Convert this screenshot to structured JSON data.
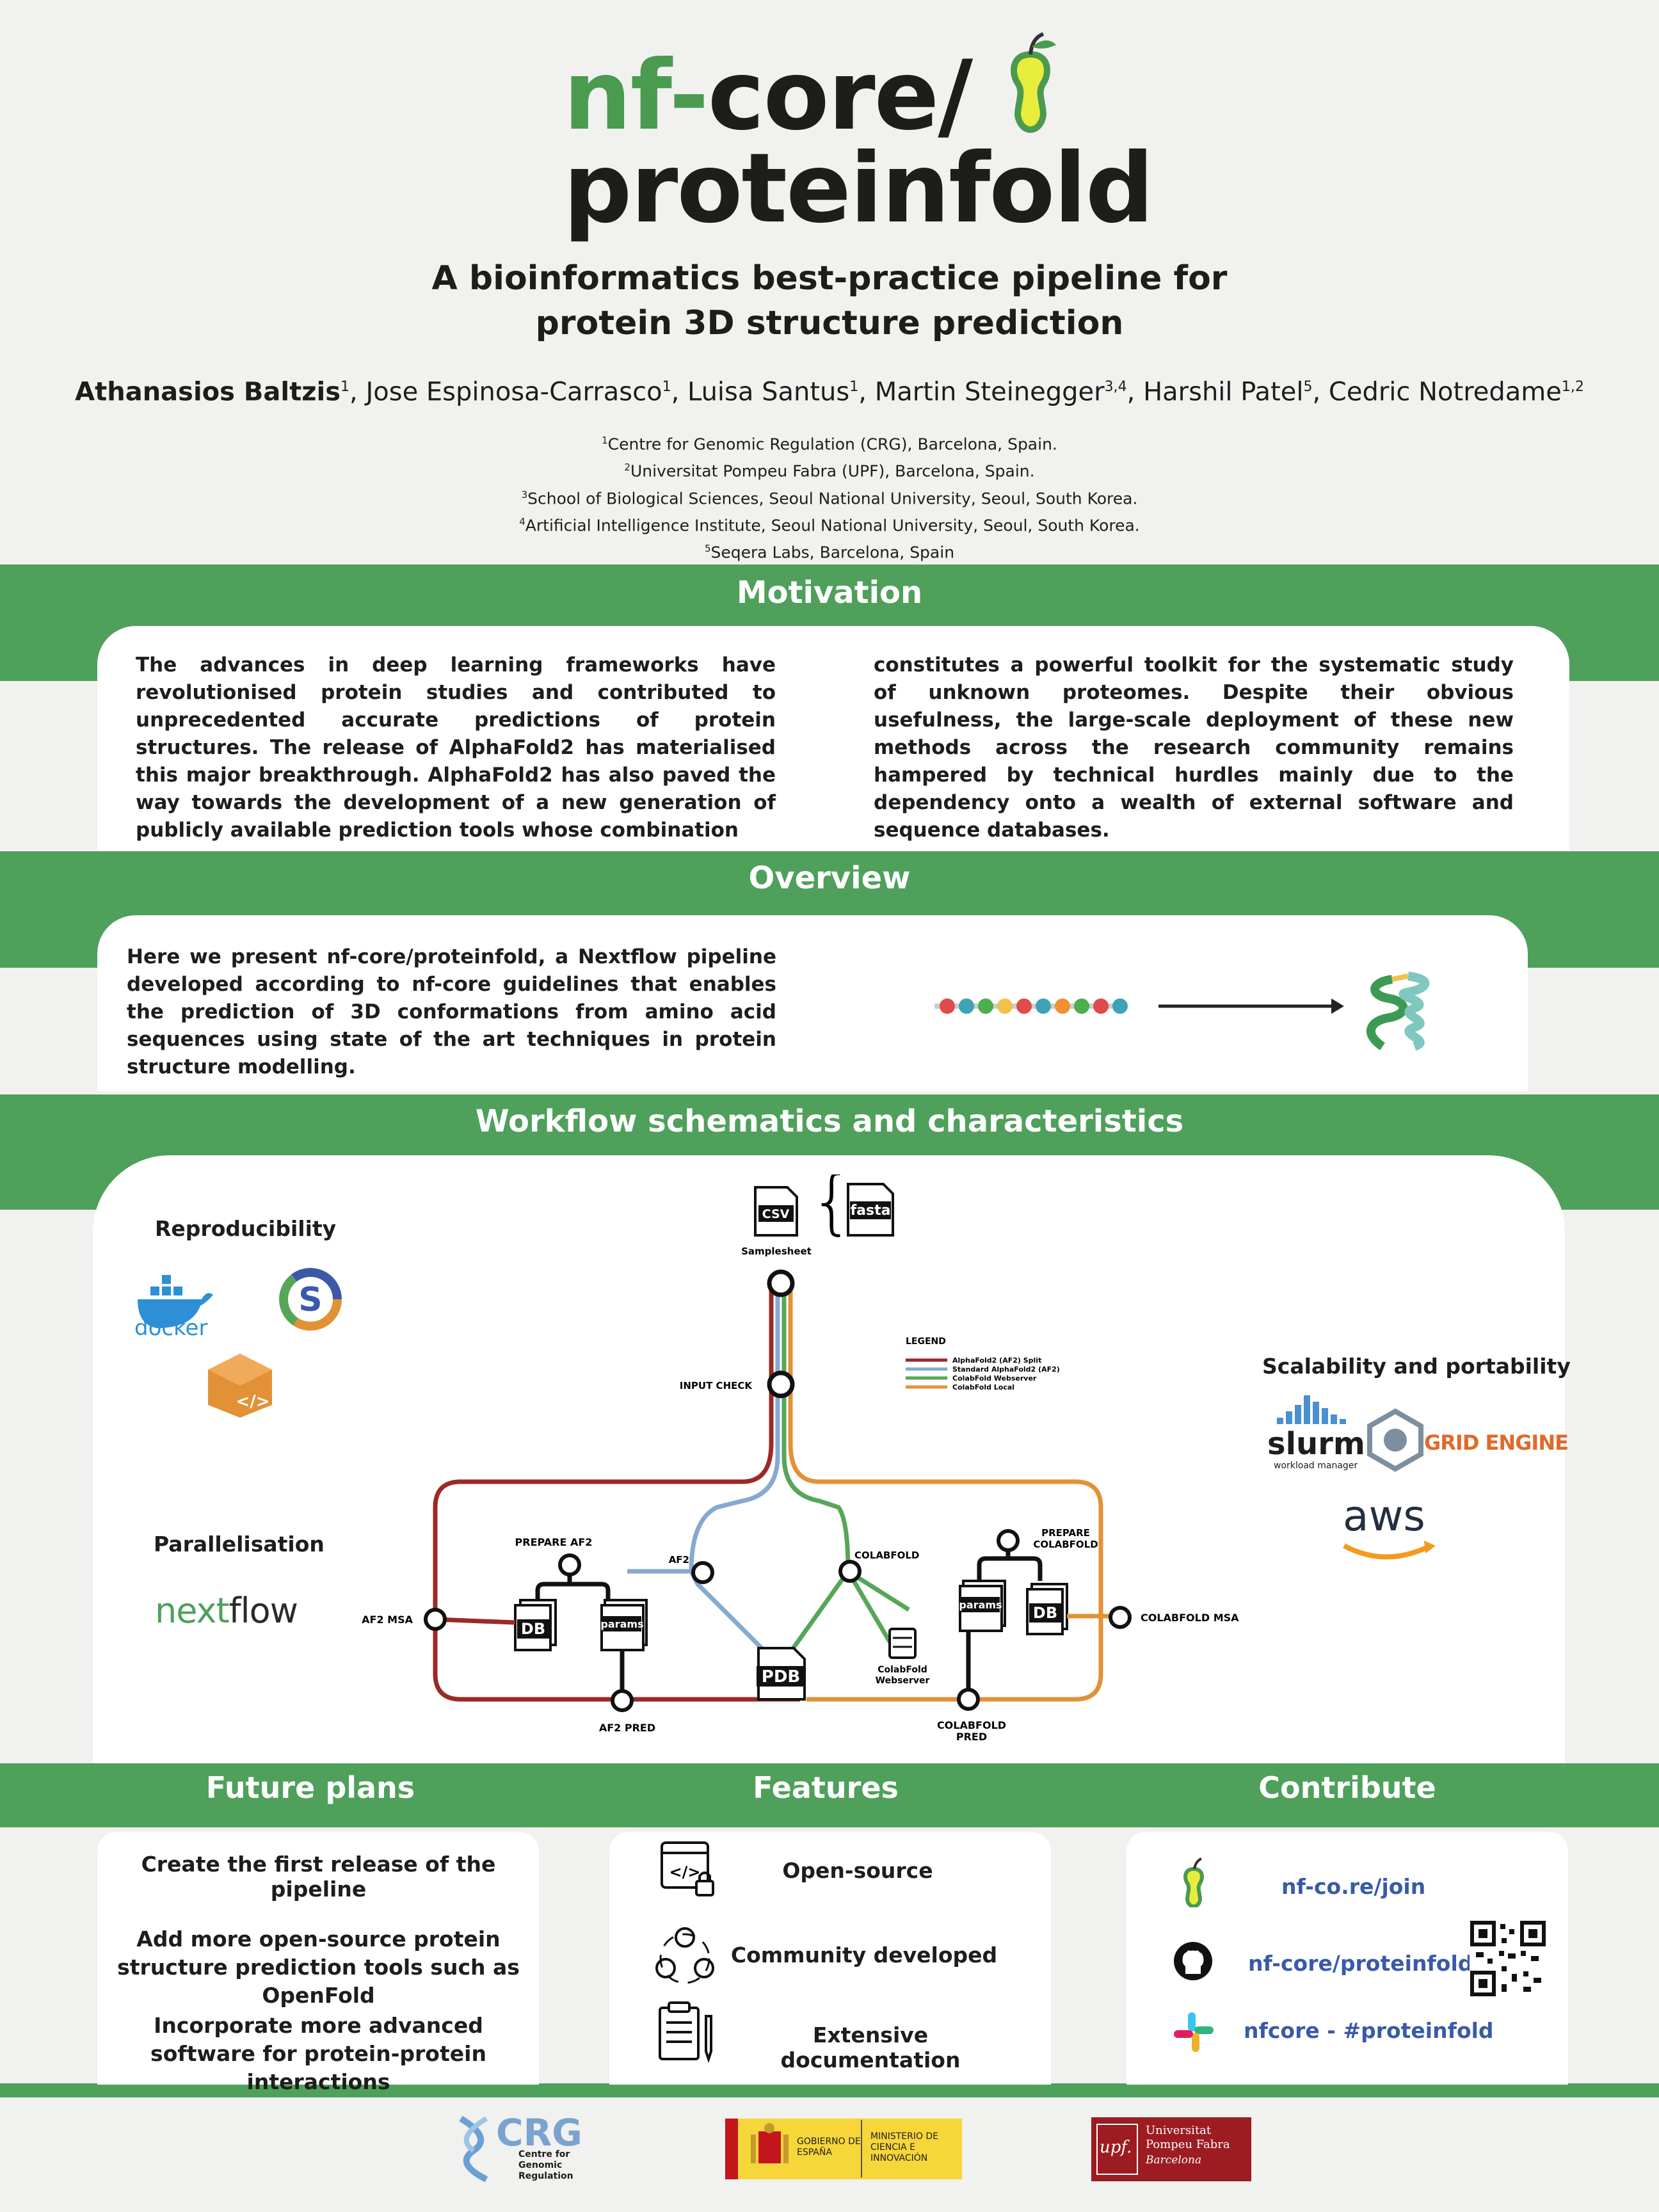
{
  "header": {
    "title_nf": "nf-",
    "title_core": "core/",
    "title_line2": "proteinfold",
    "subtitle_line1": "A bioinformatics best-practice pipeline for",
    "subtitle_line2": "protein 3D structure prediction",
    "authors": [
      {
        "name": "Athanasios Baltzis",
        "sup": "1",
        "bold": true
      },
      {
        "name": "Jose Espinosa-Carrasco",
        "sup": "1"
      },
      {
        "name": "Luisa Santus",
        "sup": "1"
      },
      {
        "name": "Martin Steinegger",
        "sup": "3,4"
      },
      {
        "name": "Harshil Patel",
        "sup": "5"
      },
      {
        "name": "Cedric Notredame",
        "sup": "1,2"
      }
    ],
    "affiliations": [
      {
        "sup": "1",
        "text": "Centre for Genomic Regulation (CRG), Barcelona, Spain."
      },
      {
        "sup": "2",
        "text": "Universitat Pompeu Fabra (UPF), Barcelona, Spain."
      },
      {
        "sup": "3",
        "text": "School of Biological Sciences, Seoul National University, Seoul, South Korea."
      },
      {
        "sup": "4",
        "text": "Artificial Intelligence Institute, Seoul National University, Seoul, South Korea."
      },
      {
        "sup": "5",
        "text": "Seqera Labs, Barcelona, Spain"
      }
    ]
  },
  "motivation": {
    "heading": "Motivation",
    "col1": "The advances in deep learning frameworks have revolutionised protein studies and contributed to unprecedented accurate predictions of protein structures. The release of AlphaFold2 has materialised this major breakthrough. AlphaFold2 has also paved the way towards the development of a new generation of publicly available prediction tools whose combination",
    "col2": "constitutes a powerful toolkit for the systematic study of unknown proteomes. Despite their obvious usefulness, the large-scale deployment of these new methods across the research community remains hampered by technical hurdles mainly due to the dependency onto a wealth of external software and sequence databases."
  },
  "overview": {
    "heading": "Overview",
    "text": "Here we present nf-core/proteinfold, a Nextflow pipeline developed according to nf-core guidelines that enables the prediction of 3D conformations from amino acid sequences using state of the art techniques in protein structure modelling."
  },
  "workflow": {
    "heading": "Workflow schematics and characteristics",
    "reproducibility": "Reproducibility",
    "docker": "docker",
    "parallelisation": "Parallelisation",
    "nextflow_a": "nex",
    "nextflow_b": "t",
    "nextflow_c": "flow",
    "scalability": "Scalability and portability",
    "slurm": "slurm",
    "slurm_sub": "workload manager",
    "grid_engine": "GRID ENGINE",
    "aws": "aws",
    "legend_title": "LEGEND",
    "legend": [
      {
        "label": "AlphaFold2 (AF2) Split",
        "color": "#9b2a24"
      },
      {
        "label": "Standard AlphaFold2 (AF2)",
        "color": "#86a9d1"
      },
      {
        "label": "ColabFold Webserver",
        "color": "#56a65a"
      },
      {
        "label": "ColabFold Local",
        "color": "#e39137"
      }
    ],
    "nodes": {
      "samplesheet": "Samplesheet",
      "csv": "CSV",
      "fasta": "fasta",
      "input_check": "INPUT CHECK",
      "prepare_af2": "PREPARE AF2",
      "af2": "AF2",
      "af2_msa": "AF2 MSA",
      "af2_pred": "AF2 PRED",
      "db": "DB",
      "params": "params",
      "pdb": "PDB",
      "colabfold": "COLABFOLD",
      "prepare_colabfold_1": "PREPARE",
      "prepare_colabfold_2": "COLABFOLD",
      "colabfold_msa": "COLABFOLD MSA",
      "colabfold_pred_1": "COLABFOLD",
      "colabfold_pred_2": "PRED",
      "webserver_1": "ColabFold",
      "webserver_2": "Webserver"
    }
  },
  "future": {
    "heading": "Future plans",
    "items": [
      "Create the first release of the pipeline",
      "Add more open-source protein structure prediction tools such as OpenFold",
      "Incorporate more advanced software for protein-protein interactions"
    ]
  },
  "features": {
    "heading": "Features",
    "items": [
      "Open-source",
      "Community developed",
      "Extensive documentation"
    ]
  },
  "contribute": {
    "heading": "Contribute",
    "links": [
      "nf-co.re/join",
      "nf-core/proteinfold",
      "nfcore - #proteinfold"
    ]
  },
  "footer": {
    "crg_name": "CRG",
    "crg_sub": "Centre for Genomic Regulation",
    "gob1": "GOBIERNO DE ESPAÑA",
    "gob2": "MINISTERIO DE CIENCIA E INNOVACIÓN",
    "upf_logo": "upf.",
    "upf_name": "Universitat Pompeu Fabra",
    "upf_city": "Barcelona"
  },
  "colors": {
    "green": "#4ea05a",
    "af2_split": "#9b2a24",
    "af2": "#86a9d1",
    "colab_web": "#56a65a",
    "colab_local": "#e39137",
    "link": "#3a5aa8"
  }
}
